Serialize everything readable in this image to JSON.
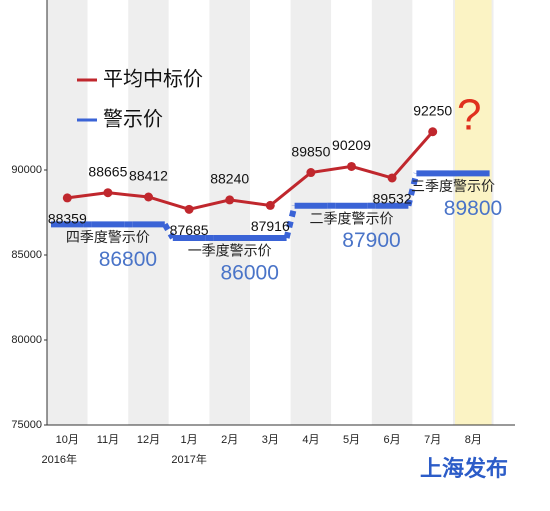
{
  "chart_data": {
    "type": "line",
    "categories": [
      "10月",
      "11月",
      "12月",
      "1月",
      "2月",
      "3月",
      "4月",
      "5月",
      "6月",
      "7月",
      "8月"
    ],
    "x_year_labels": [
      "2016年",
      null,
      null,
      "2017年",
      null,
      null,
      null,
      null,
      null,
      null,
      null
    ],
    "series": [
      {
        "name": "平均中标价",
        "color": "#c0272d",
        "values": [
          88359,
          88665,
          88412,
          87685,
          88240,
          87916,
          89850,
          90209,
          89532,
          92250,
          null
        ]
      },
      {
        "name": "警示价",
        "color": "#3a63d6",
        "values": [
          86800,
          86800,
          86800,
          86000,
          86000,
          86000,
          87900,
          87900,
          87900,
          89800,
          89800
        ]
      }
    ],
    "annotations": [
      "四季度警示价",
      "一季度警示价",
      "二季度警示价",
      "三季度警示价"
    ],
    "question": "?",
    "brand": "上海发布",
    "ylim": [
      75000,
      100000
    ],
    "yticks": [
      75000,
      80000,
      85000,
      90000
    ],
    "highlight_color": "#fbf3c4",
    "legend": "top-left"
  }
}
